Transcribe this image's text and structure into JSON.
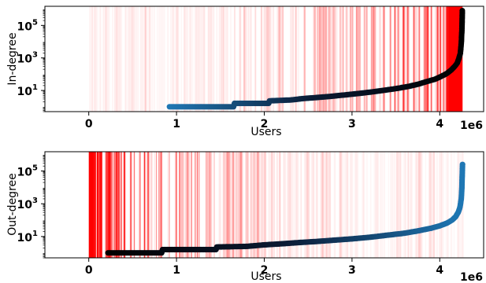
{
  "chart_data": [
    {
      "type": "scatter",
      "xlabel": "Users",
      "ylabel": "In-degree",
      "x_offset_text": "1e6",
      "xlim": [
        -0.5,
        4.5
      ],
      "ylim": [
        0.5,
        1500000
      ],
      "y_scale": "log",
      "x_ticks": [
        0,
        1,
        2,
        3,
        4
      ],
      "x_tick_labels": [
        "0",
        "1",
        "2",
        "3",
        "4"
      ],
      "y_ticks": [
        10,
        1000,
        100000
      ],
      "y_tick_labels": [
        "10^1",
        "10^3",
        "10^5"
      ],
      "series_color_gradient": [
        "#1f77b4",
        "#0b1a33",
        "#000000"
      ],
      "background_band_color": "#ff0000",
      "background_bands": "vertical red bands, density increasing toward the right",
      "points": [
        [
          0.92,
          1
        ],
        [
          1.2,
          1
        ],
        [
          1.5,
          1
        ],
        [
          1.65,
          1
        ],
        [
          1.66,
          1.6
        ],
        [
          1.9,
          1.6
        ],
        [
          2.05,
          1.6
        ],
        [
          2.06,
          2.3
        ],
        [
          2.3,
          2.6
        ],
        [
          2.45,
          3.2
        ],
        [
          2.6,
          3.7
        ],
        [
          2.75,
          4.3
        ],
        [
          2.9,
          5.2
        ],
        [
          3.05,
          6.3
        ],
        [
          3.2,
          7.8
        ],
        [
          3.35,
          10
        ],
        [
          3.5,
          13
        ],
        [
          3.65,
          18
        ],
        [
          3.75,
          24
        ],
        [
          3.85,
          35
        ],
        [
          3.95,
          50
        ],
        [
          4.02,
          75
        ],
        [
          4.08,
          110
        ],
        [
          4.13,
          180
        ],
        [
          4.17,
          300
        ],
        [
          4.2,
          500
        ],
        [
          4.22,
          1000
        ],
        [
          4.235,
          2000
        ],
        [
          4.245,
          8000
        ],
        [
          4.252,
          50000
        ],
        [
          4.255,
          200000
        ],
        [
          4.257,
          800000
        ]
      ]
    },
    {
      "type": "scatter",
      "xlabel": "Users",
      "ylabel": "Out-degree",
      "x_offset_text": "1e6",
      "xlim": [
        -0.5,
        4.5
      ],
      "ylim": [
        0.5,
        1500000
      ],
      "y_scale": "log",
      "x_ticks": [
        0,
        1,
        2,
        3,
        4
      ],
      "x_tick_labels": [
        "0",
        "1",
        "2",
        "3",
        "4"
      ],
      "y_ticks": [
        10,
        1000,
        100000
      ],
      "y_tick_labels": [
        "10^1",
        "10^3",
        "10^5"
      ],
      "series_color_gradient": [
        "#000000",
        "#0b1a33",
        "#1f77b4"
      ],
      "background_band_color": "#ff0000",
      "background_bands": "vertical red bands, density increasing toward the left",
      "points": [
        [
          0.22,
          1
        ],
        [
          0.5,
          1
        ],
        [
          0.83,
          1
        ],
        [
          0.84,
          1.6
        ],
        [
          1.1,
          1.6
        ],
        [
          1.45,
          1.6
        ],
        [
          1.46,
          2.3
        ],
        [
          1.8,
          2.5
        ],
        [
          2.0,
          3.1
        ],
        [
          2.2,
          3.6
        ],
        [
          2.4,
          4.3
        ],
        [
          2.6,
          5
        ],
        [
          2.8,
          6
        ],
        [
          3.0,
          7.2
        ],
        [
          3.2,
          9
        ],
        [
          3.4,
          12
        ],
        [
          3.6,
          16
        ],
        [
          3.75,
          22
        ],
        [
          3.9,
          32
        ],
        [
          4.0,
          45
        ],
        [
          4.08,
          65
        ],
        [
          4.14,
          100
        ],
        [
          4.18,
          160
        ],
        [
          4.21,
          300
        ],
        [
          4.23,
          600
        ],
        [
          4.245,
          2000
        ],
        [
          4.252,
          10000
        ],
        [
          4.256,
          60000
        ],
        [
          4.259,
          250000
        ]
      ]
    }
  ]
}
